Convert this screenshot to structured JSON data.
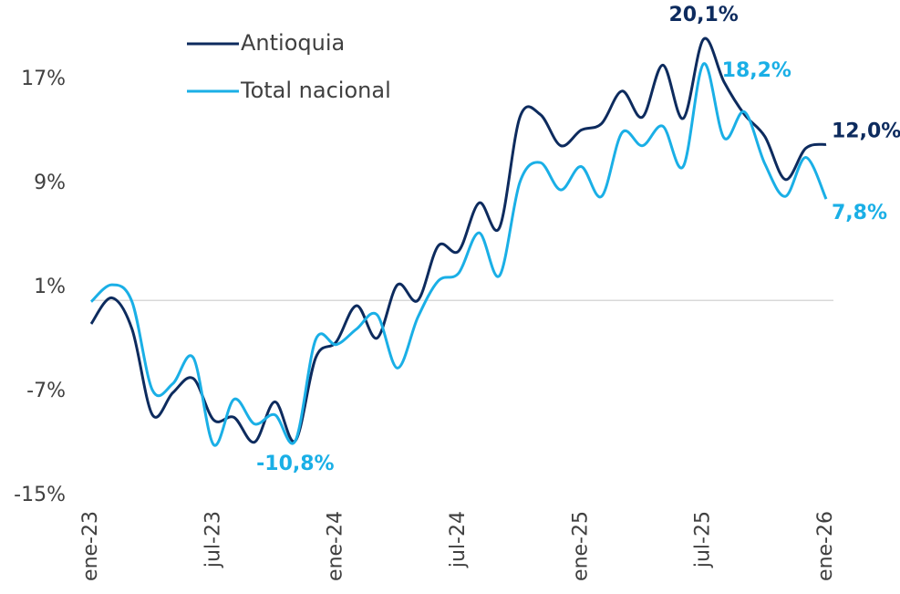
{
  "chart_data": {
    "type": "line",
    "categories": [
      "ene-23",
      null,
      null,
      null,
      null,
      null,
      "jul-23",
      null,
      null,
      null,
      null,
      null,
      "ene-24",
      null,
      null,
      null,
      null,
      null,
      "jul-24",
      null,
      null,
      null,
      null,
      null,
      "ene-25",
      null,
      null,
      null,
      null,
      null,
      "jul-25",
      null,
      null,
      null,
      null,
      null,
      "ene-26"
    ],
    "series": [
      {
        "name": "Antioquia",
        "color": "#0d2b5e",
        "values": [
          -1.8,
          0.2,
          -2.2,
          -8.8,
          -7.1,
          -6.0,
          -9.2,
          -9.0,
          -10.9,
          -7.8,
          -10.8,
          -4.4,
          -3.2,
          -0.4,
          -2.9,
          1.2,
          0.0,
          4.2,
          3.8,
          7.5,
          5.6,
          14.1,
          14.3,
          11.9,
          13.1,
          13.6,
          16.1,
          14.1,
          18.1,
          14.0,
          20.1,
          16.8,
          14.3,
          12.6,
          9.3,
          11.7,
          12.0
        ],
        "value_labels": [
          null,
          null,
          null,
          null,
          null,
          null,
          null,
          null,
          null,
          null,
          null,
          null,
          null,
          null,
          null,
          null,
          null,
          null,
          null,
          null,
          null,
          null,
          null,
          null,
          null,
          null,
          null,
          null,
          null,
          null,
          "20,1%",
          null,
          null,
          null,
          null,
          null,
          "12,0%"
        ]
      },
      {
        "name": "Total nacional",
        "color": "#1aafe6",
        "values": [
          -0.1,
          1.2,
          -0.1,
          -6.9,
          -6.4,
          -4.4,
          -11.1,
          -7.6,
          -9.5,
          -8.8,
          -10.8,
          -3.0,
          -3.4,
          -2.2,
          -1.1,
          -5.2,
          -1.3,
          1.5,
          2.1,
          5.2,
          1.9,
          9.1,
          10.6,
          8.5,
          10.3,
          8.0,
          12.9,
          11.9,
          13.4,
          10.3,
          18.2,
          12.5,
          14.5,
          10.5,
          8.0,
          11.0,
          7.8
        ],
        "value_labels": [
          null,
          null,
          null,
          null,
          null,
          null,
          null,
          null,
          null,
          null,
          "-10,8%",
          null,
          null,
          null,
          null,
          null,
          null,
          null,
          null,
          null,
          null,
          null,
          null,
          null,
          null,
          null,
          null,
          null,
          null,
          null,
          "18,2%",
          null,
          null,
          null,
          null,
          null,
          "7,8%"
        ]
      }
    ],
    "ylim": [
      -15,
      22
    ],
    "yticks": [
      {
        "value": -15,
        "label": "-15%"
      },
      {
        "value": -7,
        "label": "-7%"
      },
      {
        "value": 1,
        "label": "1%"
      },
      {
        "value": 9,
        "label": "9%"
      },
      {
        "value": 17,
        "label": "17%"
      }
    ],
    "legend": "top-left"
  }
}
